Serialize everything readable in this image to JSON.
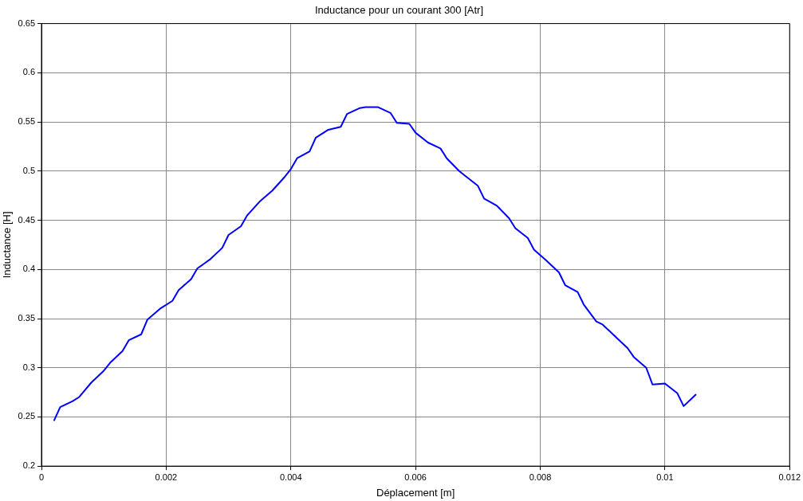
{
  "chart_data": {
    "type": "line",
    "title": "Inductance pour un courant 300 [Atr]",
    "xlabel": "Déplacement [m]",
    "ylabel": "Inductance [H]",
    "xlim": [
      0,
      0.012
    ],
    "xticks": [
      0,
      0.002,
      0.004,
      0.006,
      0.008,
      0.01,
      0.012
    ],
    "ylim": [
      0.2,
      0.65
    ],
    "yticks": [
      0.2,
      0.25,
      0.3,
      0.35,
      0.4,
      0.45,
      0.5,
      0.55,
      0.6,
      0.65
    ],
    "grid": true,
    "legend": false,
    "series": [
      {
        "color": "#0000ff",
        "x": [
          0.0002,
          0.0003,
          0.0005,
          0.0006,
          0.0008,
          0.001,
          0.0011,
          0.0013,
          0.0014,
          0.0016,
          0.0017,
          0.0019,
          0.0021,
          0.0022,
          0.0024,
          0.0025,
          0.0027,
          0.0029,
          0.003,
          0.0032,
          0.0033,
          0.0035,
          0.0037,
          0.0039,
          0.004,
          0.0041,
          0.0043,
          0.0044,
          0.0046,
          0.0048,
          0.0049,
          0.0051,
          0.0052,
          0.0054,
          0.0056,
          0.0057,
          0.0059,
          0.006,
          0.0062,
          0.0064,
          0.0065,
          0.0067,
          0.0068,
          0.007,
          0.0071,
          0.0073,
          0.0075,
          0.0076,
          0.0078,
          0.0079,
          0.0081,
          0.0083,
          0.0084,
          0.0086,
          0.0087,
          0.0089,
          0.009,
          0.0092,
          0.0094,
          0.0095,
          0.0097,
          0.0098,
          0.01,
          0.0102,
          0.0103,
          0.0105
        ],
        "values": [
          0.246,
          0.26,
          0.266,
          0.27,
          0.285,
          0.297,
          0.305,
          0.317,
          0.328,
          0.334,
          0.349,
          0.36,
          0.368,
          0.379,
          0.39,
          0.401,
          0.41,
          0.422,
          0.435,
          0.444,
          0.455,
          0.469,
          0.48,
          0.494,
          0.502,
          0.513,
          0.52,
          0.534,
          0.542,
          0.545,
          0.558,
          0.564,
          0.565,
          0.565,
          0.559,
          0.549,
          0.548,
          0.539,
          0.529,
          0.523,
          0.513,
          0.5,
          0.495,
          0.485,
          0.472,
          0.465,
          0.452,
          0.442,
          0.432,
          0.42,
          0.409,
          0.397,
          0.384,
          0.377,
          0.364,
          0.347,
          0.344,
          0.332,
          0.32,
          0.311,
          0.3,
          0.283,
          0.284,
          0.274,
          0.261,
          0.273
        ]
      }
    ]
  }
}
